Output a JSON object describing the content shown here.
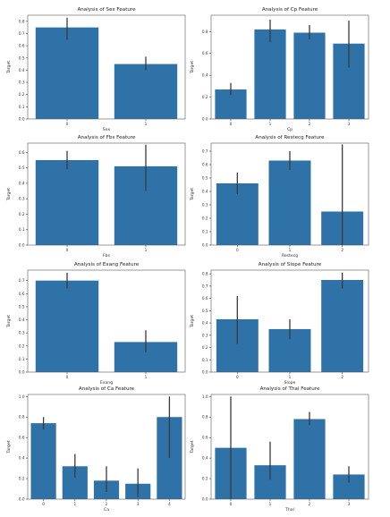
{
  "chart_data": [
    {
      "type": "bar",
      "title": "Analysis of Sex Feature",
      "xlabel": "Sex",
      "ylabel": "Target",
      "categories": [
        "0",
        "1"
      ],
      "values": [
        0.75,
        0.45
      ],
      "error_low": [
        0.65,
        0.4
      ],
      "error_high": [
        0.83,
        0.51
      ],
      "ylim": [
        0,
        0.85
      ],
      "yticks": [
        "0.0",
        "0.1",
        "0.2",
        "0.3",
        "0.4",
        "0.5",
        "0.6",
        "0.7",
        "0.8"
      ],
      "ytick_values": [
        0,
        0.1,
        0.2,
        0.3,
        0.4,
        0.5,
        0.6,
        0.7,
        0.8
      ],
      "grid": false,
      "bar_color": "#2f72a8"
    },
    {
      "type": "bar",
      "title": "Analysis of Cp Feature",
      "xlabel": "Cp",
      "ylabel": "Target",
      "categories": [
        "0",
        "1",
        "2",
        "3"
      ],
      "values": [
        0.27,
        0.82,
        0.79,
        0.69
      ],
      "error_low": [
        0.22,
        0.7,
        0.73,
        0.47
      ],
      "error_high": [
        0.33,
        0.91,
        0.86,
        0.9
      ],
      "ylim": [
        0,
        0.95
      ],
      "yticks": [
        "0.0",
        "0.2",
        "0.4",
        "0.6",
        "0.8"
      ],
      "ytick_values": [
        0,
        0.2,
        0.4,
        0.6,
        0.8
      ],
      "grid": false,
      "bar_color": "#2f72a8"
    },
    {
      "type": "bar",
      "title": "Analysis of Fbs Feature",
      "xlabel": "Fbs",
      "ylabel": "Target",
      "categories": [
        "0",
        "1"
      ],
      "values": [
        0.55,
        0.51
      ],
      "error_low": [
        0.49,
        0.35
      ],
      "error_high": [
        0.61,
        0.65
      ],
      "ylim": [
        0,
        0.66
      ],
      "yticks": [
        "0.0",
        "0.1",
        "0.2",
        "0.3",
        "0.4",
        "0.5",
        "0.6"
      ],
      "ytick_values": [
        0,
        0.1,
        0.2,
        0.3,
        0.4,
        0.5,
        0.6
      ],
      "grid": false,
      "bar_color": "#2f72a8"
    },
    {
      "type": "bar",
      "title": "Analysis of Restecg Feature",
      "xlabel": "Restecg",
      "ylabel": "Target",
      "categories": [
        "0",
        "1",
        "2"
      ],
      "values": [
        0.46,
        0.63,
        0.25
      ],
      "error_low": [
        0.38,
        0.56,
        0.0
      ],
      "error_high": [
        0.54,
        0.7,
        0.75
      ],
      "ylim": [
        0,
        0.76
      ],
      "yticks": [
        "0.0",
        "0.1",
        "0.2",
        "0.3",
        "0.4",
        "0.5",
        "0.6",
        "0.7"
      ],
      "ytick_values": [
        0,
        0.1,
        0.2,
        0.3,
        0.4,
        0.5,
        0.6,
        0.7
      ],
      "grid": false,
      "bar_color": "#2f72a8"
    },
    {
      "type": "bar",
      "title": "Analysis of Exang Feature",
      "xlabel": "Exang",
      "ylabel": "Target",
      "categories": [
        "0",
        "1"
      ],
      "values": [
        0.7,
        0.23
      ],
      "error_low": [
        0.64,
        0.15
      ],
      "error_high": [
        0.76,
        0.32
      ],
      "ylim": [
        0,
        0.78
      ],
      "yticks": [
        "0.0",
        "0.1",
        "0.2",
        "0.3",
        "0.4",
        "0.5",
        "0.6",
        "0.7"
      ],
      "ytick_values": [
        0,
        0.1,
        0.2,
        0.3,
        0.4,
        0.5,
        0.6,
        0.7
      ],
      "grid": false,
      "bar_color": "#2f72a8"
    },
    {
      "type": "bar",
      "title": "Analysis of Slope Feature",
      "xlabel": "Slope",
      "ylabel": "Target",
      "categories": [
        "0",
        "1",
        "2"
      ],
      "values": [
        0.43,
        0.35,
        0.75
      ],
      "error_low": [
        0.23,
        0.27,
        0.68
      ],
      "error_high": [
        0.62,
        0.43,
        0.81
      ],
      "ylim": [
        0,
        0.83
      ],
      "yticks": [
        "0.0",
        "0.1",
        "0.2",
        "0.3",
        "0.4",
        "0.5",
        "0.6",
        "0.7",
        "0.8"
      ],
      "ytick_values": [
        0,
        0.1,
        0.2,
        0.3,
        0.4,
        0.5,
        0.6,
        0.7,
        0.8
      ],
      "grid": false,
      "bar_color": "#2f72a8"
    },
    {
      "type": "bar",
      "title": "Analysis of Ca Feature",
      "xlabel": "Ca",
      "ylabel": "Target",
      "categories": [
        "0",
        "1",
        "2",
        "3",
        "4"
      ],
      "values": [
        0.74,
        0.32,
        0.18,
        0.15,
        0.8
      ],
      "error_low": [
        0.68,
        0.21,
        0.07,
        0.02,
        0.4
      ],
      "error_high": [
        0.8,
        0.44,
        0.32,
        0.3,
        1.0
      ],
      "ylim": [
        0,
        1.02
      ],
      "yticks": [
        "0.0",
        "0.2",
        "0.4",
        "0.6",
        "0.8",
        "1.0"
      ],
      "ytick_values": [
        0,
        0.2,
        0.4,
        0.6,
        0.8,
        1.0
      ],
      "grid": false,
      "bar_color": "#2f72a8"
    },
    {
      "type": "bar",
      "title": "Analysis of Thal Feature",
      "xlabel": "Thal",
      "ylabel": "Target",
      "categories": [
        "0",
        "1",
        "2",
        "3"
      ],
      "values": [
        0.5,
        0.33,
        0.78,
        0.24
      ],
      "error_low": [
        0.0,
        0.19,
        0.72,
        0.16
      ],
      "error_high": [
        1.0,
        0.56,
        0.85,
        0.32
      ],
      "ylim": [
        0,
        1.02
      ],
      "yticks": [
        "0.0",
        "0.2",
        "0.4",
        "0.6",
        "0.8",
        "1.0"
      ],
      "ytick_values": [
        0,
        0.2,
        0.4,
        0.6,
        0.8,
        1.0
      ],
      "grid": false,
      "bar_color": "#2f72a8"
    }
  ]
}
